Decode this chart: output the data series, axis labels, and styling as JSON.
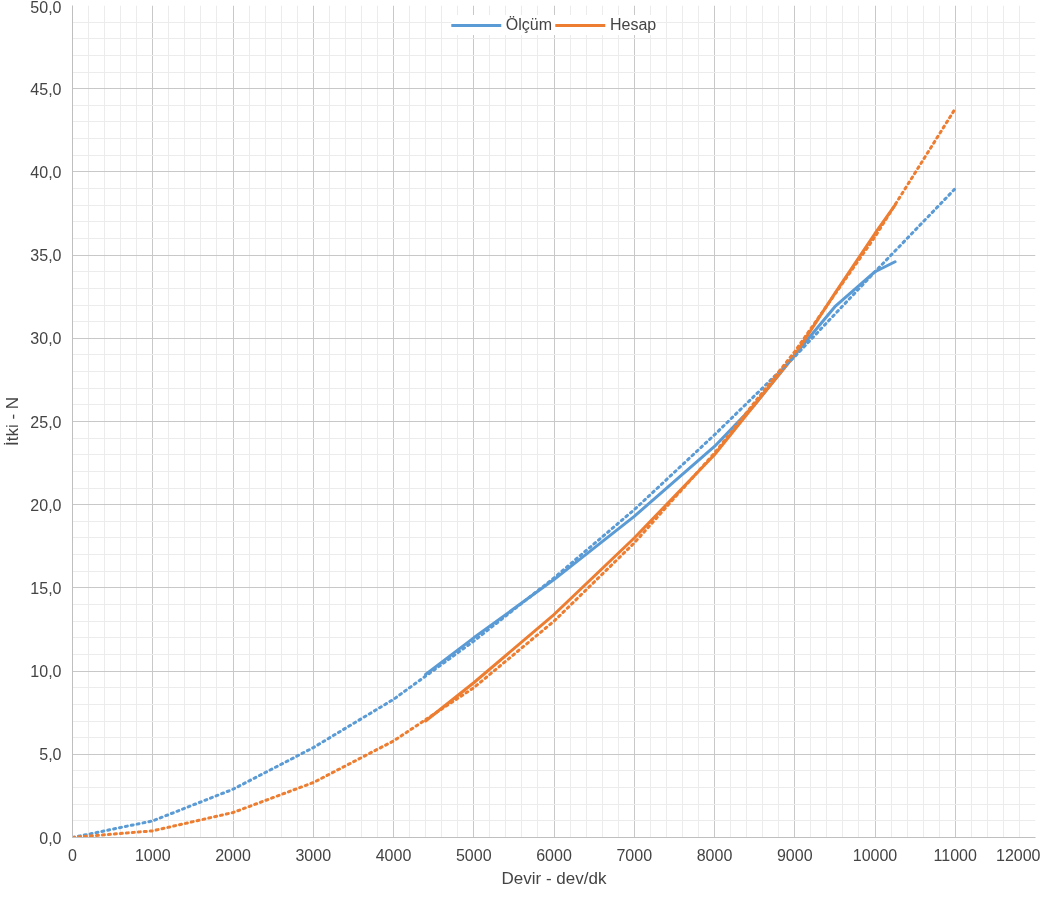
{
  "chart_data": {
    "type": "line",
    "xlabel": "Devir - dev/dk",
    "ylabel": "İtki - N",
    "xlim": [
      0,
      12000
    ],
    "xticks": [
      0,
      1000,
      2000,
      3000,
      4000,
      5000,
      6000,
      7000,
      8000,
      9000,
      10000,
      11000,
      12000
    ],
    "ylim": [
      0,
      50
    ],
    "yticks": [
      {
        "value": 0,
        "label": "0,0"
      },
      {
        "value": 5,
        "label": "5,0"
      },
      {
        "value": 10,
        "label": "10,0"
      },
      {
        "value": 15,
        "label": "15,0"
      },
      {
        "value": 20,
        "label": "20,0"
      },
      {
        "value": 25,
        "label": "25,0"
      },
      {
        "value": 30,
        "label": "30,0"
      },
      {
        "value": 35,
        "label": "35,0"
      },
      {
        "value": 40,
        "label": "40,0"
      },
      {
        "value": 45,
        "label": "45,0"
      },
      {
        "value": 50,
        "label": "50,0"
      }
    ],
    "grid": true,
    "legend": "top",
    "marker": "none",
    "series": [
      {
        "name": "Ölçüm",
        "color": "#5b9bd5",
        "line_style": "solid",
        "x": [
          4400,
          5000,
          6000,
          7000,
          8000,
          8500,
          9000,
          9500,
          10000,
          10250
        ],
        "values": [
          9.8,
          12.0,
          15.5,
          19.3,
          23.5,
          26.0,
          29.0,
          31.9,
          34.0,
          34.6
        ]
      },
      {
        "name": "Hesap",
        "color": "#ed7d31",
        "line_style": "solid",
        "x": [
          4400,
          5000,
          6000,
          7000,
          8000,
          9000,
          9500,
          10000,
          10250
        ],
        "values": [
          7.0,
          9.3,
          13.4,
          18.0,
          23.0,
          29.0,
          32.7,
          36.3,
          38.0
        ]
      },
      {
        "color": "#5b9bd5",
        "line_style": "dotted",
        "x": [
          0,
          1000,
          2000,
          3000,
          4000,
          5000,
          6000,
          7000,
          8000,
          9000,
          10000,
          11000
        ],
        "values": [
          0,
          1.0,
          2.9,
          5.4,
          8.3,
          11.8,
          15.6,
          19.7,
          24.2,
          28.9,
          34.0,
          39.0
        ]
      },
      {
        "color": "#ed7d31",
        "line_style": "dotted",
        "x": [
          0,
          1000,
          2000,
          3000,
          4000,
          5000,
          6000,
          7000,
          8000,
          9000,
          10000,
          11000
        ],
        "values": [
          0,
          0.4,
          1.5,
          3.3,
          5.8,
          9.0,
          13.0,
          17.7,
          23.1,
          29.2,
          36.1,
          43.8
        ]
      }
    ]
  }
}
